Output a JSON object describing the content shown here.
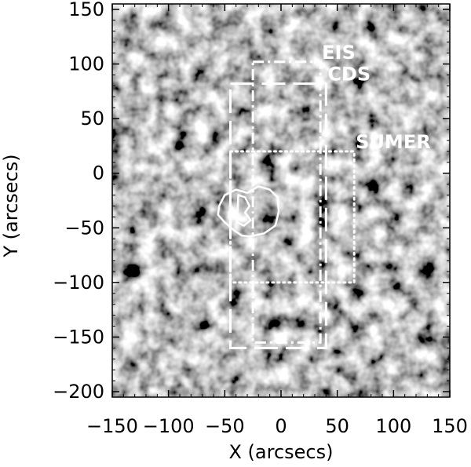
{
  "chart_data": {
    "type": "heatmap",
    "title": "",
    "xlabel": "X (arcsecs)",
    "ylabel": "Y (arcsecs)",
    "xlim": [
      -150,
      150
    ],
    "ylim": [
      -205,
      155
    ],
    "x_ticks": [
      -150,
      -100,
      -50,
      0,
      50,
      100,
      150
    ],
    "y_ticks": [
      -200,
      -150,
      -100,
      -50,
      0,
      50,
      100,
      150
    ],
    "x_tick_labels": [
      "−150",
      "−100",
      "−50",
      "0",
      "50",
      "100",
      "150"
    ],
    "y_tick_labels": [
      "−200",
      "−150",
      "−100",
      "−50",
      "0",
      "50",
      "100",
      "150"
    ],
    "colormap": "grayscale",
    "fields_of_view": [
      {
        "name": "EIS",
        "style": "dash-dot",
        "x": [
          -25,
          35
        ],
        "y": [
          -155,
          102
        ]
      },
      {
        "name": "CDS",
        "style": "long-dash",
        "x": [
          -45,
          40
        ],
        "y": [
          -160,
          82
        ]
      },
      {
        "name": "SUMER",
        "style": "dotted",
        "x": [
          -45,
          65
        ],
        "y": [
          -100,
          20
        ]
      }
    ],
    "contours": [
      {
        "color": "#ffffff",
        "points": [
          [
            -55,
            -30
          ],
          [
            -50,
            -20
          ],
          [
            -40,
            -15
          ],
          [
            -30,
            -18
          ],
          [
            -20,
            -12
          ],
          [
            -10,
            -15
          ],
          [
            -3,
            -22
          ],
          [
            -2,
            -35
          ],
          [
            -5,
            -48
          ],
          [
            -15,
            -55
          ],
          [
            -28,
            -58
          ],
          [
            -35,
            -57
          ],
          [
            -42,
            -52
          ],
          [
            -50,
            -45
          ],
          [
            -56,
            -38
          ]
        ]
      },
      {
        "color": "#ffffff",
        "points": [
          [
            -38,
            -20
          ],
          [
            -32,
            -22
          ],
          [
            -28,
            -30
          ],
          [
            -32,
            -36
          ],
          [
            -27,
            -43
          ],
          [
            -33,
            -48
          ],
          [
            -39,
            -45
          ]
        ]
      }
    ]
  },
  "colors": {
    "overlay": "#ffffff",
    "axis": "#000000"
  }
}
